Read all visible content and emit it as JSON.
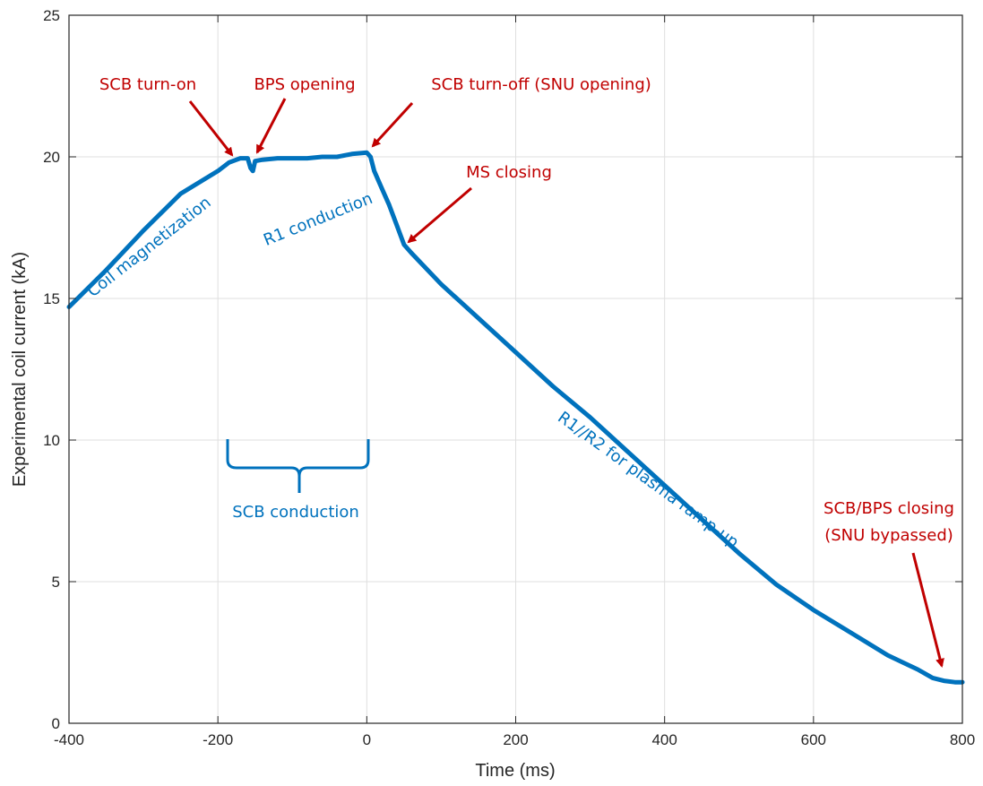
{
  "chart_data": {
    "type": "line",
    "title": "",
    "xlabel": "Time (ms)",
    "ylabel": "Experimental coil current (kA)",
    "xlim": [
      -400,
      800
    ],
    "ylim": [
      0,
      25
    ],
    "xticks": [
      -400,
      -200,
      0,
      200,
      400,
      600,
      800
    ],
    "yticks": [
      0,
      5,
      10,
      15,
      20,
      25
    ],
    "xtick_labels": [
      "-400",
      "-200",
      "0",
      "200",
      "400",
      "600",
      "800"
    ],
    "ytick_labels": [
      "0",
      "5",
      "10",
      "15",
      "20",
      "25"
    ],
    "grid": true,
    "series": [
      {
        "color": "#0072bd",
        "x": [
          -400,
          -350,
          -300,
          -250,
          -200,
          -185,
          -170,
          -160,
          -156,
          -153,
          -150,
          -140,
          -120,
          -100,
          -80,
          -60,
          -40,
          -20,
          0,
          5,
          10,
          20,
          30,
          40,
          50,
          60,
          100,
          150,
          200,
          250,
          300,
          350,
          400,
          450,
          500,
          550,
          600,
          650,
          700,
          740,
          760,
          775,
          790,
          800
        ],
        "y": [
          14.7,
          16.0,
          17.4,
          18.7,
          19.5,
          19.8,
          19.95,
          19.95,
          19.6,
          19.5,
          19.85,
          19.9,
          19.95,
          19.95,
          19.95,
          20.0,
          20.0,
          20.1,
          20.15,
          20.0,
          19.5,
          18.9,
          18.3,
          17.6,
          16.9,
          16.6,
          15.5,
          14.3,
          13.1,
          11.9,
          10.8,
          9.6,
          8.4,
          7.2,
          6.0,
          4.9,
          4.0,
          3.2,
          2.4,
          1.9,
          1.6,
          1.5,
          1.45,
          1.45
        ]
      }
    ],
    "annotations": [
      {
        "text": "SCB turn-on",
        "color": "#c00000"
      },
      {
        "text": "BPS opening",
        "color": "#c00000"
      },
      {
        "text": "SCB turn-off (SNU opening)",
        "color": "#c00000"
      },
      {
        "text": "MS closing",
        "color": "#c00000"
      },
      {
        "text": "SCB/BPS closing",
        "color": "#c00000"
      },
      {
        "text": "(SNU bypassed)",
        "color": "#c00000"
      },
      {
        "text": "Coil magnetization",
        "color": "#0072bd"
      },
      {
        "text": "R1 conduction",
        "color": "#0072bd"
      },
      {
        "text": "R1//R2 for plasma ramp-up",
        "color": "#0072bd"
      },
      {
        "text": "SCB conduction",
        "color": "#0072bd"
      }
    ]
  }
}
